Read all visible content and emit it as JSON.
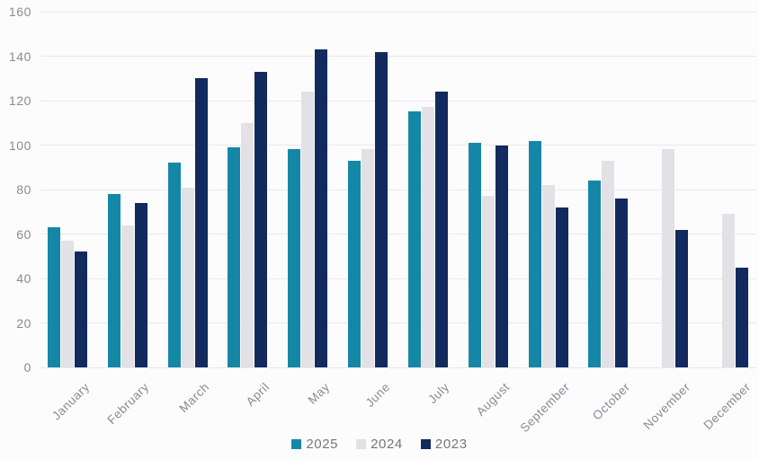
{
  "chart_data": {
    "type": "bar",
    "title": "",
    "xlabel": "",
    "ylabel": "",
    "categories": [
      "January",
      "February",
      "March",
      "April",
      "May",
      "June",
      "July",
      "August",
      "September",
      "October",
      "November",
      "December"
    ],
    "series": [
      {
        "name": "2025",
        "color": "#1587a6",
        "values": [
          63,
          78,
          92,
          99,
          98,
          93,
          115,
          101,
          102,
          84,
          null,
          null
        ]
      },
      {
        "name": "2024",
        "color": "#e1e1e6",
        "values": [
          57,
          64,
          81,
          110,
          124,
          98,
          117,
          77,
          82,
          93,
          98,
          69
        ]
      },
      {
        "name": "2023",
        "color": "#122a5e",
        "values": [
          52,
          74,
          130,
          133,
          143,
          142,
          124,
          100,
          72,
          76,
          62,
          45
        ]
      }
    ],
    "ylim": [
      0,
      160
    ],
    "yticks": [
      0,
      20,
      40,
      60,
      80,
      100,
      120,
      140,
      160
    ],
    "grid": true,
    "legend_position": "bottom"
  },
  "colors": {
    "background": "#fcfcfd",
    "gridline": "#e9e9ec",
    "axis_text": "#8a8b90",
    "legend_text": "#76777c"
  }
}
